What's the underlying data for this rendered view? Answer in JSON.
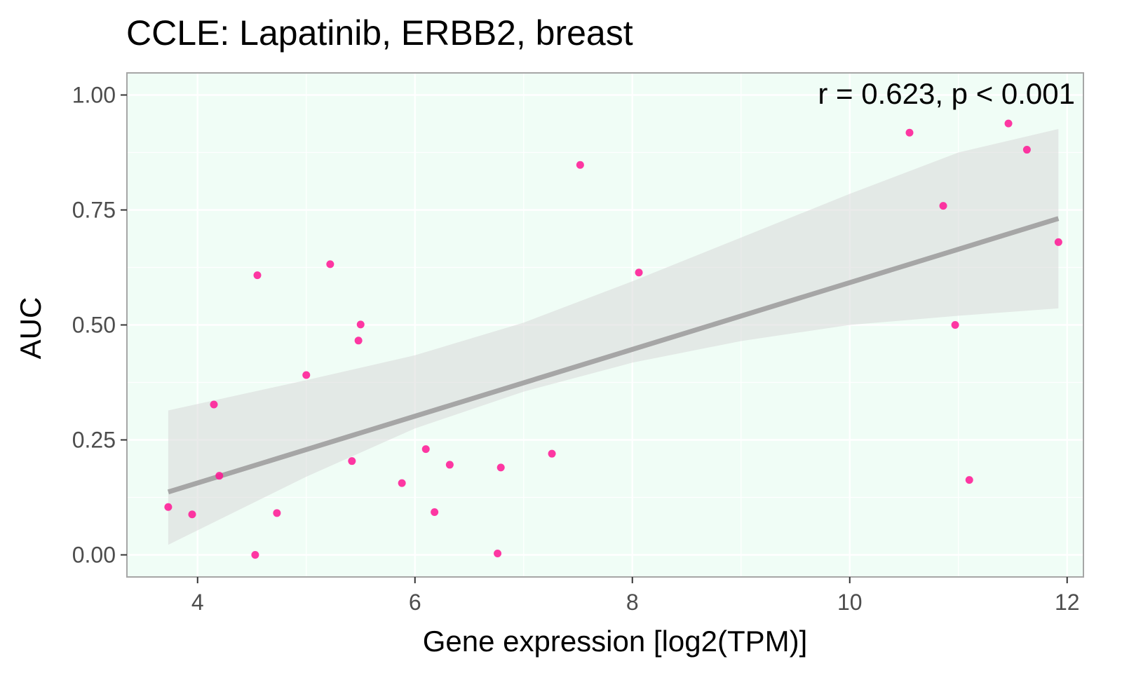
{
  "chart_data": {
    "type": "scatter",
    "title": "CCLE: Lapatinib, ERBB2, breast",
    "xlabel": "Gene expression [log2(TPM)]",
    "ylabel": "AUC",
    "annotation": "r = 0.623, p < 0.001",
    "xlim": [
      3.35,
      12.15
    ],
    "ylim": [
      -0.048,
      1.048
    ],
    "x_ticks": [
      4,
      6,
      8,
      10,
      12
    ],
    "x_tick_labels": [
      "4",
      "6",
      "8",
      "10",
      "12"
    ],
    "y_ticks": [
      0,
      0.25,
      0.5,
      0.75,
      1.0
    ],
    "y_tick_labels": [
      "0.00",
      "0.25",
      "0.50",
      "0.75",
      "1.00"
    ],
    "grid": true,
    "colors": {
      "panel_background": "#f0fdf6",
      "grid": "#ffffff",
      "points": "#ff1493",
      "fit_line": "#a6a6a6",
      "confidence_band": "#d9d9d9",
      "panel_border": "#a6a6a6"
    },
    "points": [
      {
        "x": 3.73,
        "y": 0.104
      },
      {
        "x": 3.95,
        "y": 0.088
      },
      {
        "x": 4.15,
        "y": 0.327
      },
      {
        "x": 4.2,
        "y": 0.172
      },
      {
        "x": 4.53,
        "y": 0.0
      },
      {
        "x": 4.55,
        "y": 0.608
      },
      {
        "x": 4.73,
        "y": 0.091
      },
      {
        "x": 5.0,
        "y": 0.391
      },
      {
        "x": 5.22,
        "y": 0.632
      },
      {
        "x": 5.42,
        "y": 0.204
      },
      {
        "x": 5.48,
        "y": 0.466
      },
      {
        "x": 5.5,
        "y": 0.501
      },
      {
        "x": 5.88,
        "y": 0.156
      },
      {
        "x": 6.1,
        "y": 0.23
      },
      {
        "x": 6.18,
        "y": 0.093
      },
      {
        "x": 6.32,
        "y": 0.196
      },
      {
        "x": 6.76,
        "y": 0.003
      },
      {
        "x": 6.79,
        "y": 0.19
      },
      {
        "x": 7.26,
        "y": 0.22
      },
      {
        "x": 7.52,
        "y": 0.848
      },
      {
        "x": 8.06,
        "y": 0.614
      },
      {
        "x": 10.55,
        "y": 0.918
      },
      {
        "x": 10.86,
        "y": 0.759
      },
      {
        "x": 10.97,
        "y": 0.5
      },
      {
        "x": 11.1,
        "y": 0.163
      },
      {
        "x": 11.46,
        "y": 0.938
      },
      {
        "x": 11.63,
        "y": 0.881
      },
      {
        "x": 11.92,
        "y": 0.68
      }
    ],
    "fit": {
      "x_range": [
        3.73,
        11.92
      ],
      "intercept": -0.134,
      "slope": 0.0726,
      "ci_band": [
        {
          "x": 3.73,
          "lower": 0.022,
          "upper": 0.314
        },
        {
          "x": 5.0,
          "lower": 0.17,
          "upper": 0.38
        },
        {
          "x": 6.0,
          "lower": 0.275,
          "upper": 0.434
        },
        {
          "x": 7.0,
          "lower": 0.355,
          "upper": 0.505
        },
        {
          "x": 8.0,
          "lower": 0.418,
          "upper": 0.595
        },
        {
          "x": 9.0,
          "lower": 0.465,
          "upper": 0.69
        },
        {
          "x": 10.0,
          "lower": 0.5,
          "upper": 0.785
        },
        {
          "x": 11.0,
          "lower": 0.52,
          "upper": 0.875
        },
        {
          "x": 11.92,
          "lower": 0.536,
          "upper": 0.926
        }
      ]
    }
  }
}
